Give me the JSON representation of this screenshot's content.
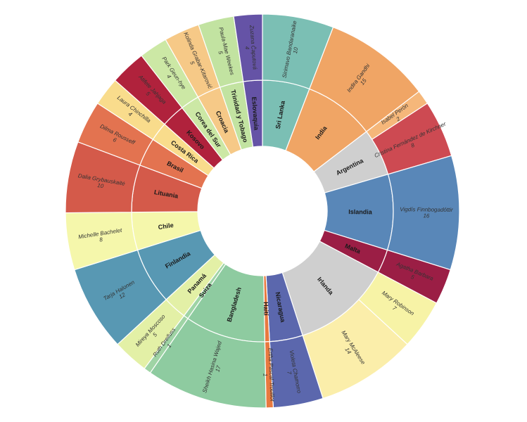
{
  "chart_data": {
    "type": "sunburst",
    "countries": [
      {
        "name": "Sri Lanka",
        "color": "#7bbfb4",
        "leaders": [
          {
            "name": "Sirimavo Bandaranaike",
            "value": 10
          }
        ]
      },
      {
        "name": "India",
        "color": "#f0a565",
        "leaders": [
          {
            "name": "Indira Gandhi",
            "value": 15
          }
        ]
      },
      {
        "name": "Argentina",
        "color": "#cfcfcf",
        "leaders": [
          {
            "name": "Isabel Perón",
            "value": 2,
            "color": "#f5b77a"
          },
          {
            "name": "Cristina Fernández de Kirchner",
            "value": 8,
            "color": "#cd4a52"
          }
        ]
      },
      {
        "name": "Islandia",
        "color": "#5987b8",
        "leaders": [
          {
            "name": "Vigdís Finnbogadóttir",
            "value": 16
          }
        ]
      },
      {
        "name": "Malta",
        "color": "#9b1e45",
        "leaders": [
          {
            "name": "Agatha Barbara",
            "value": 5
          }
        ]
      },
      {
        "name": "Irlanda",
        "color": "#cfcfcf",
        "leaders": [
          {
            "name": "Mary Robinson",
            "value": 7,
            "color": "#f7f3a6"
          },
          {
            "name": "Mary McAleese",
            "value": 14,
            "color": "#fbeeaa"
          }
        ]
      },
      {
        "name": "Nicaragua",
        "color": "#5b67ad",
        "leaders": [
          {
            "name": "Violeta Chamorro",
            "value": 7
          }
        ]
      },
      {
        "name": "Haití",
        "color": "#e8793f",
        "leaders": [
          {
            "name": "Ertha Pascal-Trouillot",
            "value": 1
          }
        ]
      },
      {
        "name": "Bangladesh",
        "color": "#8ecba0",
        "leaders": [
          {
            "name": "Sheikh Hasina Wajed",
            "value": 17
          }
        ]
      },
      {
        "name": "Suiza",
        "color": "#9fd4a5",
        "leaders": [
          {
            "name": "Ruth Dreifuss",
            "value": 1
          }
        ]
      },
      {
        "name": "Panamá",
        "color": "#e3f0a6",
        "leaders": [
          {
            "name": "Mireya Moscoso",
            "value": 5
          }
        ]
      },
      {
        "name": "Finlandia",
        "color": "#5898b3",
        "leaders": [
          {
            "name": "Tarja Halonen",
            "value": 12
          }
        ]
      },
      {
        "name": "Chile",
        "color": "#f5f7ab",
        "leaders": [
          {
            "name": "Michelle Bachelet",
            "value": 8
          }
        ]
      },
      {
        "name": "Lituania",
        "color": "#d45a4a",
        "leaders": [
          {
            "name": "Dalia Grybauskaitė",
            "value": 10
          }
        ]
      },
      {
        "name": "Brasil",
        "color": "#e37350",
        "leaders": [
          {
            "name": "Dilma Rousseff",
            "value": 6
          }
        ]
      },
      {
        "name": "Costa Rica",
        "color": "#f9dc8c",
        "leaders": [
          {
            "name": "Laura Chinchilla",
            "value": 4
          }
        ]
      },
      {
        "name": "Kosovo",
        "color": "#b0223c",
        "leaders": [
          {
            "name": "Atifete Jahjaga",
            "value": 5
          }
        ]
      },
      {
        "name": "Corea del Sur",
        "color": "#cce8a5",
        "leaders": [
          {
            "name": "Park Geun-hye",
            "value": 4
          }
        ]
      },
      {
        "name": "Croacia",
        "color": "#f6c987",
        "leaders": [
          {
            "name": "Kolinda Grabar-Kitarović",
            "value": 5
          }
        ]
      },
      {
        "name": "Trinidad y Tobago",
        "color": "#c2e3a1",
        "leaders": [
          {
            "name": "Paula-Mae Weekes",
            "value": 5
          }
        ]
      },
      {
        "name": "Eslovaquia",
        "color": "#6553a6",
        "leaders": [
          {
            "name": "Zuzana Čaputová",
            "value": 4
          }
        ]
      }
    ]
  }
}
